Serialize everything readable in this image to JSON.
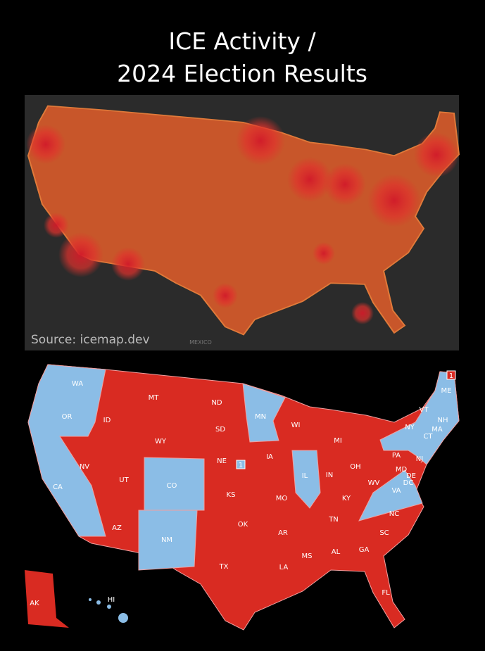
{
  "title": {
    "line1": "ICE Activity /",
    "line2": "2024 Election Results"
  },
  "heatmap": {
    "source": "Source: icemap.dev",
    "country_label": "MEXICO"
  },
  "election_map": {
    "states": [
      "WA",
      "OR",
      "CA",
      "NV",
      "ID",
      "MT",
      "WY",
      "UT",
      "AZ",
      "CO",
      "NM",
      "ND",
      "SD",
      "NE",
      "KS",
      "OK",
      "TX",
      "MN",
      "IA",
      "MO",
      "AR",
      "LA",
      "WI",
      "IL",
      "MI",
      "IN",
      "OH",
      "KY",
      "TN",
      "MS",
      "AL",
      "GA",
      "FL",
      "SC",
      "NC",
      "VA",
      "WV",
      "PA",
      "NY",
      "VT",
      "NH",
      "ME",
      "MA",
      "CT",
      "NJ",
      "MD",
      "DE",
      "DC",
      "AK",
      "HI"
    ],
    "markers": [
      "1",
      "1"
    ]
  }
}
